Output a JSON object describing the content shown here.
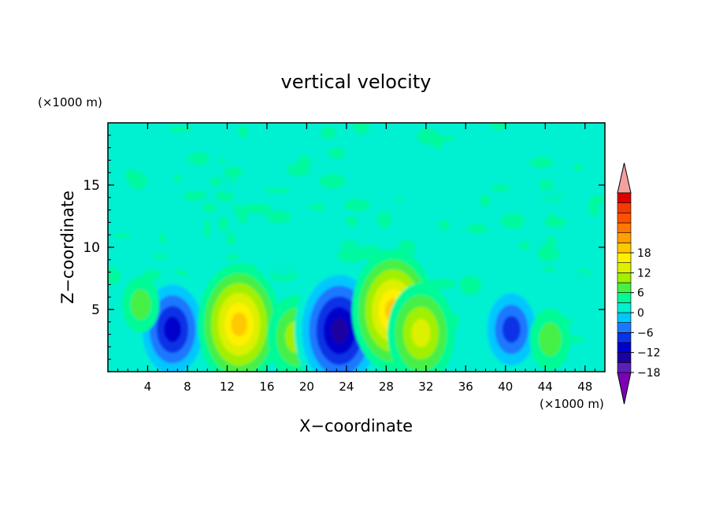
{
  "chart_data": {
    "type": "heatmap",
    "title": "vertical velocity",
    "xlabel": "X−coordinate",
    "ylabel": "Z−coordinate",
    "x_unit": "(×1000 m)",
    "y_unit": "(×1000 m)",
    "xlim": [
      0,
      50
    ],
    "ylim": [
      0,
      20
    ],
    "xticks": [
      4,
      8,
      12,
      16,
      20,
      24,
      28,
      32,
      36,
      40,
      44,
      48
    ],
    "yticks": [
      5,
      10,
      15
    ],
    "colorbar": {
      "range": [
        -21,
        21
      ],
      "step": 3,
      "tick_values": [
        18,
        12,
        6,
        0,
        -6,
        -12,
        -18
      ],
      "tick_labels": [
        "18",
        "12",
        "6",
        "0",
        "−6",
        "−12",
        "−18"
      ],
      "colors": [
        "#7f00b4",
        "#5a1fb8",
        "#1e00a0",
        "#0000cd",
        "#0a32e6",
        "#1e78ff",
        "#00c8ff",
        "#00f0d2",
        "#00fa96",
        "#46f046",
        "#a0f000",
        "#dcf000",
        "#fff000",
        "#ffc800",
        "#ffa000",
        "#ff7800",
        "#ff5000",
        "#f03c00",
        "#dc0000",
        "#f4a0a0"
      ]
    },
    "features": [
      {
        "x": 6.5,
        "z": 3.4,
        "value": -13
      },
      {
        "x": 13.2,
        "z": 3.8,
        "value": 15
      },
      {
        "x": 18.9,
        "z": 2.8,
        "value": 8
      },
      {
        "x": 23.3,
        "z": 3.3,
        "value": -17
      },
      {
        "x": 28.7,
        "z": 4.9,
        "value": 15
      },
      {
        "x": 31.5,
        "z": 3.1,
        "value": 11
      },
      {
        "x": 40.6,
        "z": 3.4,
        "value": -10
      },
      {
        "x": 3.3,
        "z": 5.4,
        "value": 3
      },
      {
        "x": 44.5,
        "z": 2.6,
        "value": 4
      }
    ],
    "background_value": 0
  }
}
